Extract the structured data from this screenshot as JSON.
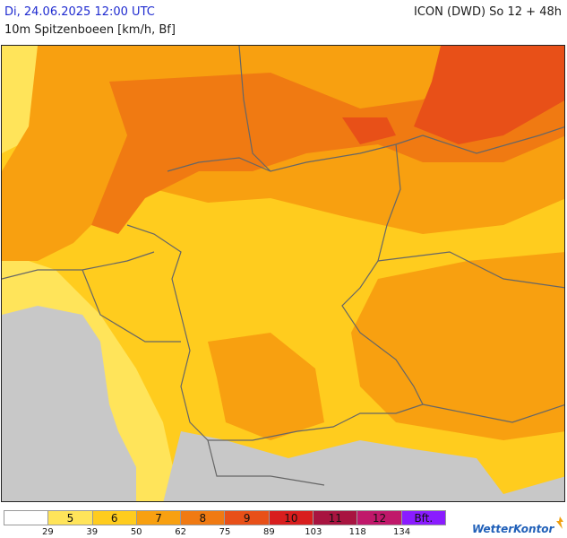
{
  "header": {
    "date": "Di, 24.06.2025 12:00 UTC",
    "model": "ICON (DWD) So 12 + 48h",
    "parameter": "10m Spitzenboeen [km/h, Bf]"
  },
  "legend": {
    "bands": [
      {
        "bf": "",
        "color": "#ffffff"
      },
      {
        "bf": "5",
        "color": "#ffe45a"
      },
      {
        "bf": "6",
        "color": "#ffcc1e"
      },
      {
        "bf": "7",
        "color": "#f8a010"
      },
      {
        "bf": "8",
        "color": "#f07a12"
      },
      {
        "bf": "9",
        "color": "#e85018"
      },
      {
        "bf": "10",
        "color": "#d81e1e"
      },
      {
        "bf": "11",
        "color": "#a81440"
      },
      {
        "bf": "12",
        "color": "#c0186a"
      },
      {
        "bf": "Bft.",
        "color": "#8a1cff"
      }
    ],
    "ticks": [
      "29",
      "39",
      "50",
      "62",
      "75",
      "89",
      "103",
      "118",
      "134"
    ]
  },
  "colors": {
    "no_data": "#c8c8c8",
    "border": "#666666"
  },
  "logo": {
    "text": "WetterKontor"
  }
}
